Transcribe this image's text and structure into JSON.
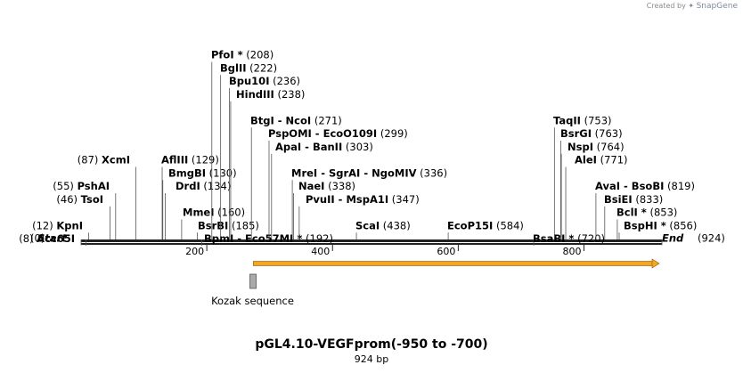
{
  "credit": {
    "created_by": "Created by",
    "brand": "SnapGene"
  },
  "plasmid": {
    "name": "pGL4.10-VEGFprom(-950 to -700)",
    "length_label": "924 bp",
    "length": 924
  },
  "axis": {
    "ticks": [
      200,
      400,
      600,
      800
    ]
  },
  "start_label": {
    "name": "Start",
    "pos": "(0)"
  },
  "end_label": {
    "name": "End",
    "pos": "(924)"
  },
  "sites": [
    {
      "names": [
        "Acc65I"
      ],
      "pos": 8,
      "label": "(8)",
      "row": 16,
      "side": "left",
      "x": 84
    },
    {
      "names": [
        "KpnI"
      ],
      "pos": 12,
      "label": "(12)",
      "row": 15,
      "side": "left",
      "x": 93
    },
    {
      "names": [
        "TsoI"
      ],
      "pos": 46,
      "label": "(46)",
      "row": 13,
      "side": "left",
      "x": 116
    },
    {
      "names": [
        "PshAI"
      ],
      "pos": 55,
      "label": "(55)",
      "row": 12,
      "side": "left",
      "x": 123
    },
    {
      "names": [
        "XcmI"
      ],
      "pos": 87,
      "label": "(87)",
      "row": 10,
      "side": "left",
      "x": 146
    },
    {
      "names": [
        "BpmI",
        "Eco57MI *"
      ],
      "pos": 192,
      "label": "(192)",
      "row": 16,
      "side": "right",
      "x": 229
    },
    {
      "names": [
        "BsrBI"
      ],
      "pos": 185,
      "label": "(185)",
      "row": 15,
      "side": "right",
      "x": 222
    },
    {
      "names": [
        "MmeI"
      ],
      "pos": 160,
      "label": "(160)",
      "row": 14,
      "side": "right",
      "x": 205
    },
    {
      "names": [
        "DrdI"
      ],
      "pos": 134,
      "label": "(134)",
      "row": 12,
      "side": "right",
      "x": 197
    },
    {
      "names": [
        "BmgBI"
      ],
      "pos": 130,
      "label": "(130)",
      "row": 11,
      "side": "right",
      "x": 189
    },
    {
      "names": [
        "AflIII"
      ],
      "pos": 129,
      "label": "(129)",
      "row": 10,
      "side": "right",
      "x": 181
    },
    {
      "names": [
        "ScaI"
      ],
      "pos": 438,
      "label": "(438)",
      "row": 15,
      "side": "right",
      "x": 399
    },
    {
      "names": [
        "PvuII",
        "MspA1I"
      ],
      "pos": 347,
      "label": "(347)",
      "row": 13,
      "side": "right",
      "x": 343
    },
    {
      "names": [
        "NaeI"
      ],
      "pos": 338,
      "label": "(338)",
      "row": 12,
      "side": "right",
      "x": 335
    },
    {
      "names": [
        "MreI",
        "SgrAI",
        "NgoMIV"
      ],
      "pos": 336,
      "label": "(336)",
      "row": 11,
      "side": "right",
      "x": 327
    },
    {
      "names": [
        "ApaI",
        "BanII"
      ],
      "pos": 303,
      "label": "(303)",
      "row": 9,
      "side": "right",
      "x": 309
    },
    {
      "names": [
        "PspOMI",
        "EcoO109I"
      ],
      "pos": 299,
      "label": "(299)",
      "row": 8,
      "side": "right",
      "x": 301
    },
    {
      "names": [
        "BtgI",
        "NcoI"
      ],
      "pos": 271,
      "label": "(271)",
      "row": 7,
      "side": "right",
      "x": 281
    },
    {
      "names": [
        "HindIII"
      ],
      "pos": 238,
      "label": "(238)",
      "row": 5,
      "side": "right",
      "x": 265
    },
    {
      "names": [
        "Bpu10I"
      ],
      "pos": 236,
      "label": "(236)",
      "row": 4,
      "side": "right",
      "x": 257
    },
    {
      "names": [
        "BglII"
      ],
      "pos": 222,
      "label": "(222)",
      "row": 3,
      "side": "right",
      "x": 247
    },
    {
      "names": [
        "PfoI *"
      ],
      "pos": 208,
      "label": "(208)",
      "row": 2,
      "side": "right",
      "x": 237
    },
    {
      "names": [
        "EcoP15I"
      ],
      "pos": 584,
      "label": "(584)",
      "row": 15,
      "side": "right",
      "x": 502
    },
    {
      "names": [
        "BsaBI *"
      ],
      "pos": 720,
      "label": "(720)",
      "row": 16,
      "side": "right",
      "x": 598
    },
    {
      "names": [
        "TaqII"
      ],
      "pos": 753,
      "label": "(753)",
      "row": 7,
      "side": "right",
      "x": 621
    },
    {
      "names": [
        "BsrGI"
      ],
      "pos": 763,
      "label": "(763)",
      "row": 8,
      "side": "right",
      "x": 629
    },
    {
      "names": [
        "NspI"
      ],
      "pos": 764,
      "label": "(764)",
      "row": 9,
      "side": "right",
      "x": 637
    },
    {
      "names": [
        "AleI"
      ],
      "pos": 771,
      "label": "(771)",
      "row": 10,
      "side": "right",
      "x": 645
    },
    {
      "names": [
        "AvaI",
        "BsoBI"
      ],
      "pos": 819,
      "label": "(819)",
      "row": 12,
      "side": "right",
      "x": 668
    },
    {
      "names": [
        "BsiEI"
      ],
      "pos": 833,
      "label": "(833)",
      "row": 13,
      "side": "right",
      "x": 678
    },
    {
      "names": [
        "BclI *"
      ],
      "pos": 853,
      "label": "(853)",
      "row": 14,
      "side": "right",
      "x": 692
    },
    {
      "names": [
        "BspHI *"
      ],
      "pos": 856,
      "label": "(856)",
      "row": 15,
      "side": "right",
      "x": 700
    }
  ],
  "features": [
    {
      "name": "Kozak sequence",
      "start": 270,
      "end": 281,
      "type": "misc"
    },
    {
      "name": "",
      "start": 274,
      "end": 924,
      "type": "arrow",
      "color": "#f5a623"
    }
  ]
}
